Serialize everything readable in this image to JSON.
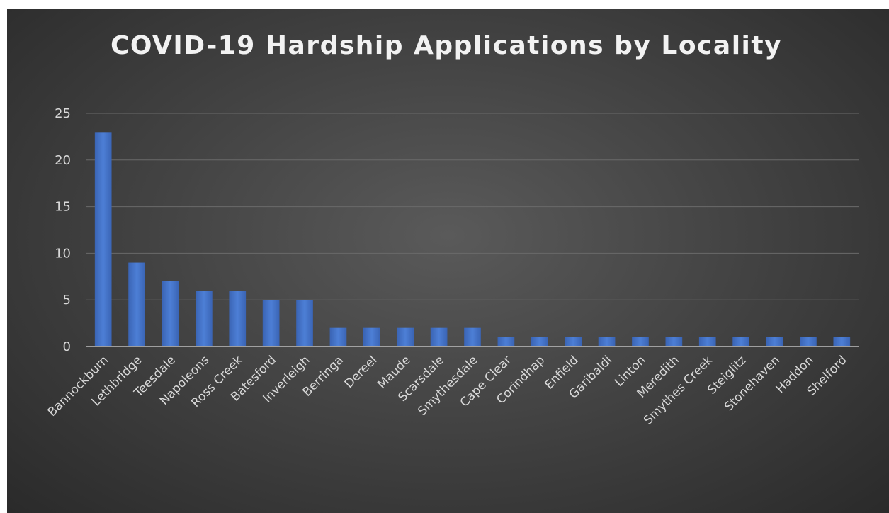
{
  "chart_data": {
    "type": "bar",
    "title": "COVID-19  Hardship  Applications  by  Locality",
    "xlabel": "",
    "ylabel": "",
    "categories": [
      "Bannockburn",
      "Lethbridge",
      "Teesdale",
      "Napoleons",
      "Ross Creek",
      "Batesford",
      "Inverleigh",
      "Berringa",
      "Dereel",
      "Maude",
      "Scarsdale",
      "Smythesdale",
      "Cape Clear",
      "Corindhap",
      "Enfield",
      "Garibaldi",
      "Linton",
      "Meredith",
      "Smythes Creek",
      "Steiglitz",
      "Stonehaven",
      "Haddon",
      "Shelford"
    ],
    "values": [
      23,
      9,
      7,
      6,
      6,
      5,
      5,
      2,
      2,
      2,
      2,
      2,
      1,
      1,
      1,
      1,
      1,
      1,
      1,
      1,
      1,
      1,
      1
    ],
    "ylim": [
      0,
      25
    ],
    "yticks": [
      0,
      5,
      10,
      15,
      20,
      25
    ],
    "grid": true,
    "legend": "none",
    "bar_color": "#4472c4",
    "background_color": "#404040"
  }
}
